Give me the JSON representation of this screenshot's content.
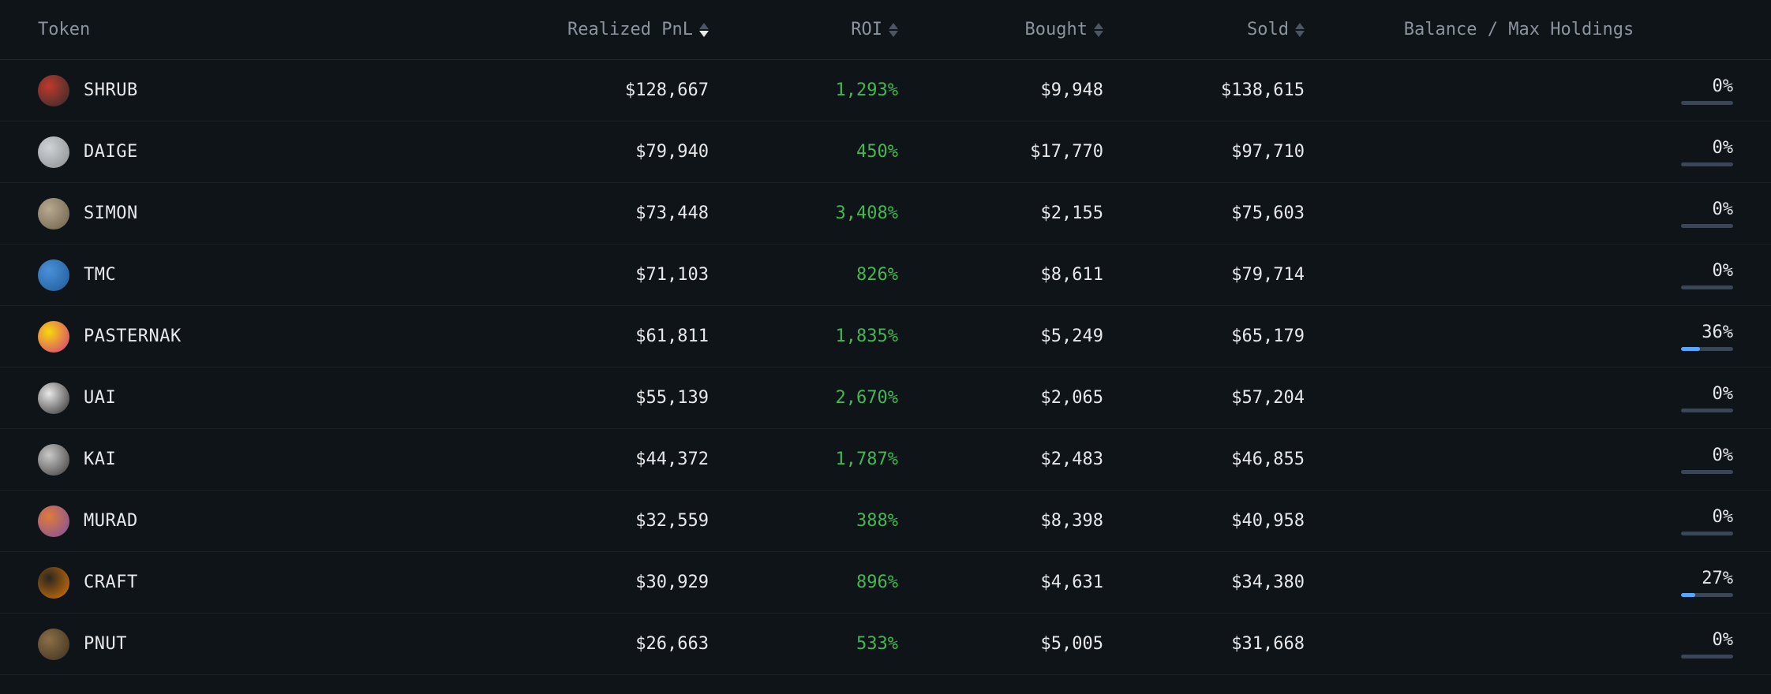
{
  "colors": {
    "background": "#0f1419",
    "text_primary": "#e6e8ea",
    "text_secondary": "#8b949e",
    "row_border": "#1a2029",
    "header_border": "#1e2530",
    "positive": "#3fb950",
    "bar_track": "#3a4556",
    "bar_fill": "#58a6ff",
    "sort_inactive": "#4b5563",
    "sort_active": "#e6e8ea"
  },
  "columns": {
    "token": "Token",
    "pnl": "Realized PnL",
    "roi": "ROI",
    "bought": "Bought",
    "sold": "Sold",
    "balance": "Balance / Max Holdings"
  },
  "sort": {
    "active_column": "pnl",
    "direction": "desc"
  },
  "rows": [
    {
      "token": "SHRUB",
      "icon_bg": "#c0392b",
      "icon_bg2": "#2c2c2c",
      "pnl": "$128,667",
      "roi": "1,293%",
      "bought": "$9,948",
      "sold": "$138,615",
      "balance_pct": "0%",
      "balance_fill": 0
    },
    {
      "token": "DAIGE",
      "icon_bg": "#d0d3d6",
      "icon_bg2": "#8a8d90",
      "pnl": "$79,940",
      "roi": "450%",
      "bought": "$17,770",
      "sold": "$97,710",
      "balance_pct": "0%",
      "balance_fill": 0
    },
    {
      "token": "SIMON",
      "icon_bg": "#b8a98f",
      "icon_bg2": "#6b5f4a",
      "pnl": "$73,448",
      "roi": "3,408%",
      "bought": "$2,155",
      "sold": "$75,603",
      "balance_pct": "0%",
      "balance_fill": 0
    },
    {
      "token": "TMC",
      "icon_bg": "#4a90d9",
      "icon_bg2": "#1f5a96",
      "pnl": "$71,103",
      "roi": "826%",
      "bought": "$8,611",
      "sold": "$79,714",
      "balance_pct": "0%",
      "balance_fill": 0
    },
    {
      "token": "PASTERNAK",
      "icon_bg": "#f5d90a",
      "icon_bg2": "#d63384",
      "pnl": "$61,811",
      "roi": "1,835%",
      "bought": "$5,249",
      "sold": "$65,179",
      "balance_pct": "36%",
      "balance_fill": 36
    },
    {
      "token": "UAI",
      "icon_bg": "#e8e8e8",
      "icon_bg2": "#2b2b2b",
      "pnl": "$55,139",
      "roi": "2,670%",
      "bought": "$2,065",
      "sold": "$57,204",
      "balance_pct": "0%",
      "balance_fill": 0
    },
    {
      "token": "KAI",
      "icon_bg": "#c9c9c9",
      "icon_bg2": "#3a3a3a",
      "pnl": "$44,372",
      "roi": "1,787%",
      "bought": "$2,483",
      "sold": "$46,855",
      "balance_pct": "0%",
      "balance_fill": 0
    },
    {
      "token": "MURAD",
      "icon_bg": "#e07b39",
      "icon_bg2": "#7b4fa3",
      "pnl": "$32,559",
      "roi": "388%",
      "bought": "$8,398",
      "sold": "$40,958",
      "balance_pct": "0%",
      "balance_fill": 0
    },
    {
      "token": "CRAFT",
      "icon_bg": "#2b2620",
      "icon_bg2": "#d97706",
      "pnl": "$30,929",
      "roi": "896%",
      "bought": "$4,631",
      "sold": "$34,380",
      "balance_pct": "27%",
      "balance_fill": 27
    },
    {
      "token": "PNUT",
      "icon_bg": "#8b6f47",
      "icon_bg2": "#3d2f1f",
      "pnl": "$26,663",
      "roi": "533%",
      "bought": "$5,005",
      "sold": "$31,668",
      "balance_pct": "0%",
      "balance_fill": 0
    }
  ]
}
